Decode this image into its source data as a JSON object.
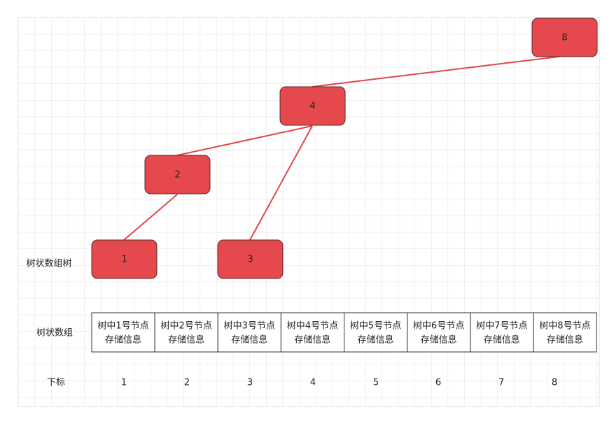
{
  "tree": {
    "label": "树状数组树",
    "nodes": [
      {
        "label": "8"
      },
      {
        "label": "4"
      },
      {
        "label": "2"
      },
      {
        "label": "1"
      },
      {
        "label": "3"
      }
    ]
  },
  "array": {
    "label": "树状数组",
    "cells": [
      [
        "树中1号节点",
        "存储信息"
      ],
      [
        "树中2号节点",
        "存储信息"
      ],
      [
        "树中3号节点",
        "存储信息"
      ],
      [
        "树中4号节点",
        "存储信息"
      ],
      [
        "树中5号节点",
        "存储信息"
      ],
      [
        "树中6号节点",
        "存储信息"
      ],
      [
        "树中7号节点",
        "存储信息"
      ],
      [
        "树中8号节点",
        "存储信息"
      ]
    ]
  },
  "index": {
    "label": "下标",
    "values": [
      "1",
      "2",
      "3",
      "4",
      "5",
      "6",
      "7",
      "8"
    ]
  }
}
